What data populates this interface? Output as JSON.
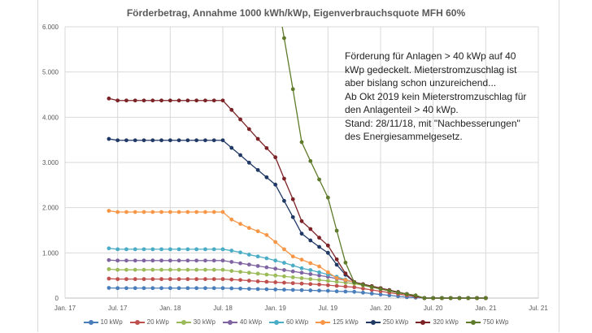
{
  "chart_data": {
    "type": "line",
    "title": "Förderbetrag, Annahme 1000 kWh/kWp, Eigenverbrauchsquote MFH 60%",
    "xlabel": "",
    "ylabel": "",
    "ylim": [
      0,
      6000
    ],
    "xlim": [
      "2017-01",
      "2021-07"
    ],
    "grid": true,
    "legend_position": "bottom",
    "y_ticks": [
      "0",
      "1.000",
      "2.000",
      "3.000",
      "4.000",
      "5.000",
      "6.000"
    ],
    "y_tick_values": [
      0,
      1000,
      2000,
      3000,
      4000,
      5000,
      6000
    ],
    "x_ticks": [
      "Jan. 17",
      "Jul. 17",
      "Jan. 18",
      "Jul. 18",
      "Jan. 19",
      "Jul. 19",
      "Jan. 20",
      "Jul. 20",
      "Jan. 21",
      "Jul. 21"
    ],
    "x_tick_values": [
      "2017-01",
      "2017-07",
      "2018-01",
      "2018-07",
      "2019-01",
      "2019-07",
      "2020-01",
      "2020-07",
      "2021-01",
      "2021-07"
    ],
    "x": [
      "2017-06",
      "2017-07",
      "2017-08",
      "2017-09",
      "2017-10",
      "2017-11",
      "2017-12",
      "2018-01",
      "2018-02",
      "2018-03",
      "2018-04",
      "2018-05",
      "2018-06",
      "2018-07",
      "2018-08",
      "2018-09",
      "2018-10",
      "2018-11",
      "2018-12",
      "2019-01",
      "2019-02",
      "2019-03",
      "2019-04",
      "2019-05",
      "2019-06",
      "2019-07",
      "2019-08",
      "2019-09",
      "2019-10",
      "2019-11",
      "2019-12",
      "2020-01",
      "2020-02",
      "2020-03",
      "2020-04",
      "2020-05",
      "2020-06",
      "2020-07",
      "2020-08",
      "2020-09",
      "2020-10",
      "2020-11",
      "2020-12",
      "2021-01"
    ],
    "series": [
      {
        "name": "10 kWp",
        "color": "#4a7ebb",
        "values": [
          225,
          220,
          220,
          220,
          220,
          220,
          220,
          220,
          220,
          220,
          220,
          220,
          220,
          220,
          215,
          210,
          205,
          200,
          195,
          190,
          185,
          180,
          175,
          170,
          165,
          160,
          150,
          145,
          138,
          120,
          100,
          80,
          60,
          40,
          20,
          10,
          0,
          0,
          0,
          0,
          0,
          0,
          0,
          0
        ]
      },
      {
        "name": "20 kWp",
        "color": "#c0504d",
        "values": [
          430,
          420,
          420,
          420,
          420,
          420,
          420,
          420,
          420,
          420,
          420,
          420,
          420,
          420,
          410,
          400,
          385,
          370,
          360,
          350,
          340,
          330,
          320,
          310,
          300,
          285,
          270,
          255,
          240,
          210,
          180,
          150,
          120,
          90,
          60,
          30,
          0,
          0,
          0,
          0,
          0,
          0,
          0,
          0
        ]
      },
      {
        "name": "30 kWp",
        "color": "#9bbb59",
        "values": [
          640,
          625,
          625,
          625,
          625,
          625,
          625,
          625,
          625,
          625,
          625,
          625,
          625,
          625,
          600,
          580,
          560,
          540,
          520,
          500,
          480,
          460,
          440,
          420,
          400,
          380,
          360,
          340,
          320,
          280,
          240,
          200,
          160,
          120,
          80,
          40,
          0,
          0,
          0,
          0,
          0,
          0,
          0,
          0
        ]
      },
      {
        "name": "40 kWp",
        "color": "#8064a2",
        "values": [
          840,
          830,
          830,
          830,
          830,
          830,
          830,
          830,
          830,
          830,
          830,
          830,
          830,
          830,
          800,
          770,
          740,
          710,
          680,
          650,
          620,
          590,
          560,
          530,
          500,
          470,
          430,
          390,
          353,
          305,
          262,
          218,
          175,
          131,
          88,
          44,
          0,
          0,
          0,
          0,
          0,
          0,
          0,
          0
        ]
      },
      {
        "name": "60 kWp",
        "color": "#4bacc6",
        "values": [
          1100,
          1080,
          1080,
          1080,
          1080,
          1080,
          1080,
          1080,
          1080,
          1080,
          1080,
          1080,
          1080,
          1080,
          1050,
          1010,
          960,
          920,
          880,
          830,
          780,
          720,
          660,
          620,
          570,
          520,
          470,
          410,
          353,
          305,
          262,
          218,
          175,
          131,
          88,
          44,
          0,
          0,
          0,
          0,
          0,
          0,
          0,
          0
        ]
      },
      {
        "name": "125 kWp",
        "color": "#f79646",
        "values": [
          1930,
          1904,
          1904,
          1904,
          1904,
          1904,
          1904,
          1904,
          1904,
          1904,
          1904,
          1904,
          1904,
          1904,
          1737,
          1641,
          1551,
          1479,
          1395,
          1240,
          1080,
          920,
          850,
          772,
          700,
          570,
          443,
          400,
          353,
          305,
          262,
          218,
          175,
          131,
          88,
          44,
          0,
          0,
          0,
          0,
          0,
          0,
          0,
          0
        ]
      },
      {
        "name": "250 kWp",
        "color": "#1f3864",
        "values": [
          3520,
          3490,
          3490,
          3490,
          3490,
          3490,
          3490,
          3490,
          3490,
          3490,
          3490,
          3490,
          3490,
          3490,
          3323,
          3162,
          2994,
          2832,
          2671,
          2509,
          2150,
          1790,
          1425,
          1275,
          1132,
          1000,
          737,
          515,
          353,
          305,
          262,
          218,
          175,
          131,
          88,
          44,
          0,
          0,
          0,
          0,
          0,
          0,
          0,
          0
        ]
      },
      {
        "name": "320 kWp",
        "color": "#7b2226",
        "values": [
          4414,
          4370,
          4370,
          4370,
          4370,
          4370,
          4370,
          4370,
          4370,
          4370,
          4370,
          4370,
          4370,
          4370,
          4162,
          3952,
          3737,
          3521,
          3317,
          3114,
          2641,
          2186,
          1701,
          1527,
          1335,
          1162,
          856,
          545,
          353,
          305,
          262,
          218,
          175,
          131,
          88,
          44,
          0,
          0,
          0,
          0,
          0,
          0,
          0,
          0
        ]
      },
      {
        "name": "750 kWp",
        "color": "#5e7a2a",
        "values": [
          null,
          null,
          null,
          null,
          null,
          null,
          null,
          null,
          null,
          null,
          null,
          null,
          null,
          null,
          null,
          null,
          null,
          null,
          null,
          6900,
          5750,
          4620,
          3450,
          3030,
          2623,
          2222,
          1491,
          784,
          347,
          293,
          246,
          203,
          162,
          120,
          90,
          60,
          0,
          0,
          0,
          0,
          0,
          0,
          0,
          0
        ]
      }
    ],
    "annotation_lines": [
      "Förderung für Anlagen > 40 kWp auf 40",
      "kWp gedeckelt. Mieterstromzuschlag ist",
      "aber bislang schon unzureichend...",
      "Ab Okt 2019 kein Mieterstromzuschlag für",
      "den Anlagenteil > 40 kWp.",
      "Stand: 28/11/18, mit \"Nachbesserungen\"",
      "des Energiesammelgesetz."
    ]
  }
}
